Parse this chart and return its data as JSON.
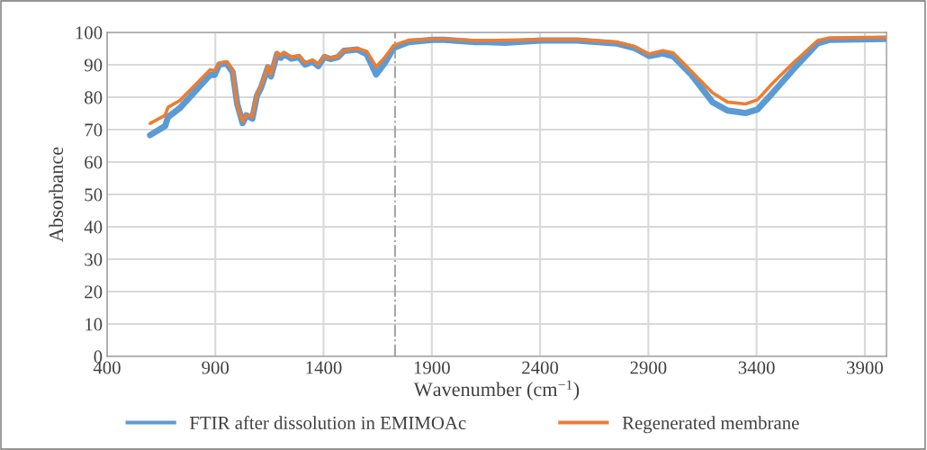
{
  "chart_data": {
    "type": "line",
    "xlabel": "Wavenumber (cm$^{−1}$)",
    "ylabel": "Absorbance",
    "xlim": [
      400,
      4000
    ],
    "xticks": [
      400,
      900,
      1400,
      1900,
      2400,
      2900,
      3400,
      3900
    ],
    "ylim": [
      0,
      100
    ],
    "yticks": [
      0,
      10,
      20,
      30,
      40,
      50,
      60,
      70,
      80,
      90,
      100
    ],
    "grid": true,
    "legend": "bottom",
    "marker": "none",
    "line_style": "solid",
    "ref_lines": [
      {
        "axis": "x",
        "value": 1730,
        "label": null,
        "color": "#a6a6a6",
        "line_style": "dashdot"
      }
    ],
    "series": [
      {
        "name": "FTIR after dissolution in EMIMOAc",
        "color": "#5b9bd5",
        "x": [
          599,
          668,
          682,
          737,
          876,
          897,
          918,
          952,
          980,
          1001,
          1026,
          1043,
          1071,
          1092,
          1112,
          1143,
          1157,
          1185,
          1203,
          1217,
          1251,
          1286,
          1314,
          1349,
          1376,
          1404,
          1432,
          1467,
          1494,
          1557,
          1599,
          1643,
          1682,
          1724,
          1793,
          1904,
          1960,
          2099,
          2154,
          2238,
          2404,
          2571,
          2751,
          2835,
          2904,
          2967,
          3015,
          3099,
          3196,
          3265,
          3349,
          3404,
          3474,
          3571,
          3682,
          3738,
          3995
        ],
        "values": [
          68.3,
          71.1,
          73.9,
          76.7,
          86.9,
          86.9,
          90.1,
          90.4,
          87.8,
          78,
          72,
          74.4,
          73.4,
          80.4,
          83.1,
          89.2,
          86.4,
          93.3,
          92.2,
          93.3,
          91.9,
          92.4,
          90.1,
          91,
          89.6,
          92.4,
          91.8,
          92.4,
          94.3,
          94.7,
          93.3,
          87,
          90.5,
          95.2,
          97,
          97.7,
          97.7,
          97,
          97,
          96.8,
          97.5,
          97.5,
          96.6,
          95.2,
          92.7,
          93.5,
          92.6,
          86.9,
          78.5,
          75.9,
          75.1,
          76.2,
          81.3,
          88.7,
          96.6,
          97.7,
          98
        ]
      },
      {
        "name": "Regenerated membrane",
        "color": "#ed7d31",
        "x": [
          599,
          668,
          682,
          737,
          876,
          897,
          918,
          952,
          980,
          1001,
          1026,
          1043,
          1071,
          1092,
          1112,
          1143,
          1157,
          1185,
          1203,
          1217,
          1251,
          1286,
          1314,
          1349,
          1376,
          1404,
          1432,
          1467,
          1494,
          1557,
          1599,
          1643,
          1682,
          1724,
          1793,
          1904,
          1960,
          2099,
          2154,
          2404,
          2571,
          2751,
          2835,
          2904,
          2967,
          3015,
          3099,
          3196,
          3265,
          3349,
          3404,
          3474,
          3571,
          3682,
          3738,
          3995
        ],
        "values": [
          71.9,
          74.4,
          76.9,
          79,
          88.5,
          88.2,
          90.5,
          91,
          88.5,
          77.5,
          72.5,
          74.6,
          74,
          81,
          83.5,
          89.7,
          87,
          93.8,
          92.8,
          93.8,
          92.4,
          92.8,
          90.6,
          91.5,
          90.2,
          92.7,
          92.1,
          92.6,
          94.5,
          95,
          94.2,
          89.4,
          92.2,
          96,
          97.6,
          98,
          98,
          97.5,
          97.5,
          97.8,
          97.8,
          97,
          95.7,
          93.3,
          94.4,
          93.7,
          88,
          81.4,
          78.5,
          77.9,
          79.2,
          84.3,
          90.7,
          97.5,
          98.3,
          98.5
        ]
      }
    ]
  }
}
